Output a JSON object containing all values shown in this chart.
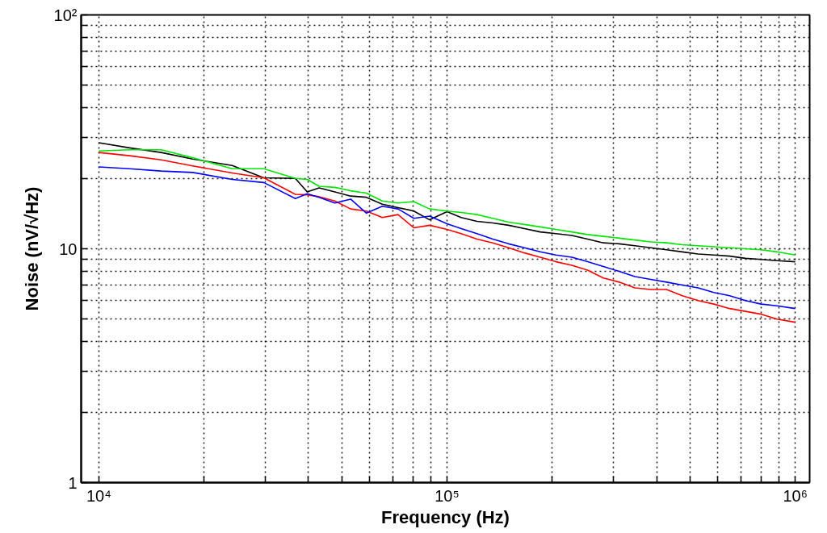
{
  "chart_data": {
    "type": "line",
    "xlabel": "Frequency (Hz)",
    "ylabel": "Noise (nV/√Hz)",
    "log": "xy",
    "grid": true,
    "line_style": "solid",
    "marker": "none",
    "x": [
      10000,
      12260,
      15110,
      18610,
      24160,
      29780,
      36690,
      39680,
      42930,
      47640,
      52880,
      58700,
      65190,
      72350,
      80300,
      89160,
      100000,
      109840,
      121950,
      135320,
      150290,
      166880,
      185180,
      205550,
      228250,
      253340,
      281190,
      312160,
      346520,
      384590,
      426970,
      473930,
      526100,
      584020,
      648240,
      719580,
      798750,
      886760,
      1000000
    ],
    "xlim": [
      8900,
      1100000
    ],
    "ylim": [
      1,
      100
    ],
    "xticks": [
      {
        "value": 10000,
        "label": "10⁴"
      },
      {
        "value": 20000,
        "label": null
      },
      {
        "value": 30000,
        "label": null
      },
      {
        "value": 40000,
        "label": null
      },
      {
        "value": 50000,
        "label": null
      },
      {
        "value": 60000,
        "label": null
      },
      {
        "value": 70000,
        "label": null
      },
      {
        "value": 80000,
        "label": null
      },
      {
        "value": 90000,
        "label": null
      },
      {
        "value": 100000,
        "label": "10⁵"
      },
      {
        "value": 200000,
        "label": null
      },
      {
        "value": 300000,
        "label": null
      },
      {
        "value": 400000,
        "label": null
      },
      {
        "value": 500000,
        "label": null
      },
      {
        "value": 600000,
        "label": null
      },
      {
        "value": 700000,
        "label": null
      },
      {
        "value": 800000,
        "label": null
      },
      {
        "value": 900000,
        "label": null
      },
      {
        "value": 1000000,
        "label": "10⁶"
      }
    ],
    "yticks": [
      1,
      {
        "value": 2,
        "label": null
      },
      {
        "value": 3,
        "label": null
      },
      {
        "value": 4,
        "label": null
      },
      {
        "value": 5,
        "label": null
      },
      {
        "value": 6,
        "label": null
      },
      {
        "value": 7,
        "label": null
      },
      {
        "value": 8,
        "label": null
      },
      {
        "value": 9,
        "label": null
      },
      10,
      {
        "value": 20,
        "label": null
      },
      {
        "value": 30,
        "label": null
      },
      {
        "value": 40,
        "label": null
      },
      {
        "value": 50,
        "label": null
      },
      {
        "value": 60,
        "label": null
      },
      {
        "value": 70,
        "label": null
      },
      {
        "value": 80,
        "label": null
      },
      {
        "value": 90,
        "label": null
      },
      {
        "value": 100,
        "label": "10²"
      }
    ],
    "series": [
      {
        "color": "#000000",
        "values": [
          28.4,
          27,
          25.8,
          24.2,
          22.7,
          20.1,
          20.0,
          17.5,
          18.2,
          17.5,
          16.8,
          16.6,
          15.5,
          15.0,
          14.5,
          13.3,
          14.4,
          13.6,
          13.1,
          12.9,
          12.6,
          12.2,
          11.8,
          11.6,
          11.4,
          11.0,
          10.6,
          10.5,
          10.3,
          10.1,
          9.9,
          9.7,
          9.5,
          9.4,
          9.3,
          9.1,
          9.0,
          8.9,
          8.8
        ]
      },
      {
        "color": "#00e600",
        "values": [
          26.2,
          26.5,
          26.5,
          24.5,
          22.0,
          22.0,
          20.0,
          19.8,
          18.5,
          18.3,
          17.7,
          17.3,
          16.0,
          15.7,
          15.9,
          14.8,
          14.5,
          14.3,
          14.0,
          13.5,
          13.0,
          12.7,
          12.4,
          12.1,
          11.8,
          11.5,
          11.3,
          11.1,
          10.9,
          10.7,
          10.6,
          10.4,
          10.3,
          10.2,
          10.1,
          10.0,
          9.9,
          9.7,
          9.4
        ]
      },
      {
        "color": "#ff0000",
        "values": [
          25.8,
          25,
          24,
          22.6,
          21.1,
          20.1,
          17.1,
          17.0,
          16.7,
          16.0,
          14.8,
          14.5,
          13.6,
          14.0,
          12.3,
          12.6,
          12.1,
          11.6,
          11.0,
          10.6,
          10.1,
          9.6,
          9.2,
          8.8,
          8.5,
          8.1,
          7.5,
          7.2,
          6.8,
          6.7,
          6.7,
          6.3,
          6.0,
          5.8,
          5.55,
          5.4,
          5.25,
          5.0,
          4.85
        ]
      },
      {
        "color": "#0000ff",
        "values": [
          22.4,
          22.0,
          21.5,
          21.2,
          19.8,
          19.2,
          16.4,
          17.2,
          16.6,
          15.7,
          16.3,
          14.2,
          15.2,
          14.8,
          13.5,
          13.8,
          12.8,
          12.2,
          11.6,
          11.0,
          10.5,
          10.1,
          9.7,
          9.4,
          9.2,
          8.8,
          8.4,
          8.0,
          7.6,
          7.4,
          7.2,
          7.0,
          6.8,
          6.5,
          6.3,
          6.0,
          5.8,
          5.7,
          5.55
        ]
      }
    ]
  }
}
